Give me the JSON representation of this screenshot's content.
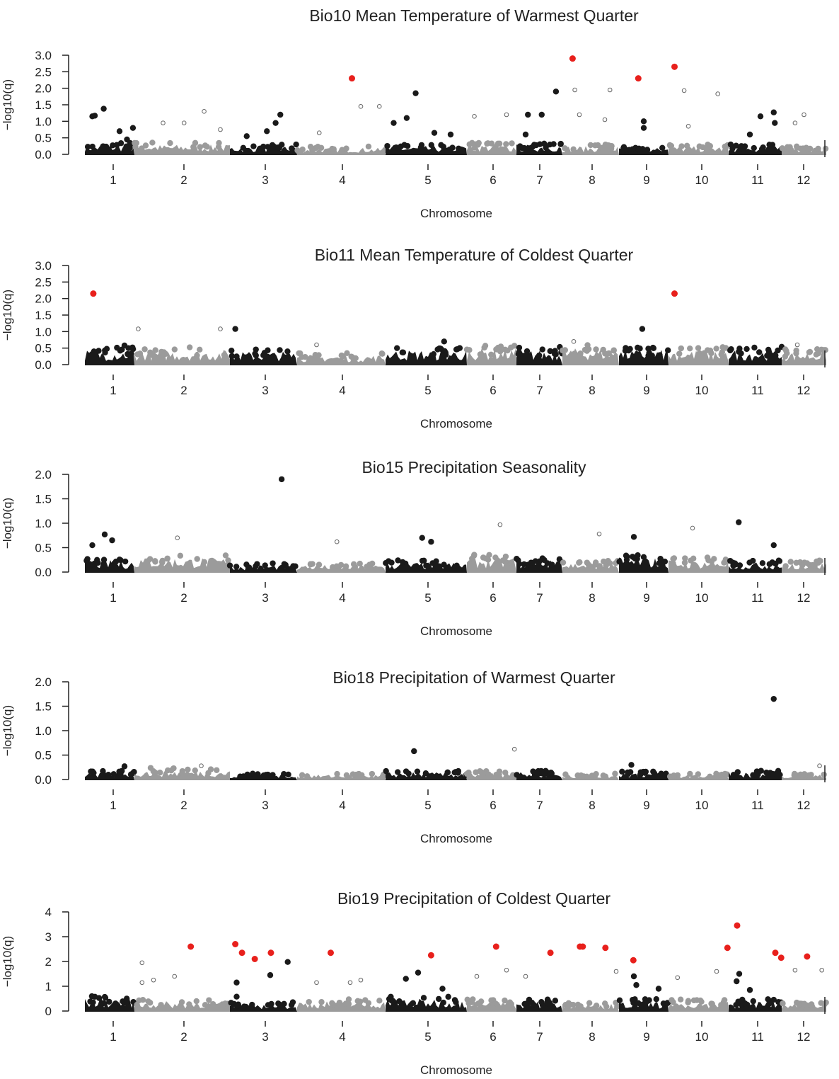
{
  "chart_data": [
    {
      "type": "scatter",
      "title": "Bio10  Mean Temperature of Warmest Quarter",
      "xlabel": "Chromosome",
      "ylabel": "−log10(q)",
      "ylim": [
        0,
        3
      ],
      "yticks": [
        "0.0",
        "0.5",
        "1.0",
        "1.5",
        "2.0",
        "2.5",
        "3.0"
      ],
      "categories": [
        "1",
        "2",
        "3",
        "4",
        "5",
        "6",
        "7",
        "8",
        "9",
        "10",
        "11",
        "12"
      ],
      "colors": {
        "odd": "#1a1a1a",
        "even": "#9b9b9b",
        "significant": "#e8201c"
      },
      "band_max": [
        0.3,
        0.3,
        0.25,
        0.2,
        0.25,
        0.3,
        0.3,
        0.25,
        0.2,
        0.25,
        0.25,
        0.2
      ],
      "points": [
        {
          "chr": 4,
          "pos": 0.62,
          "y": 2.3,
          "kind": "red"
        },
        {
          "chr": 8,
          "pos": 0.18,
          "y": 2.9,
          "kind": "red"
        },
        {
          "chr": 9,
          "pos": 0.39,
          "y": 2.3,
          "kind": "red"
        },
        {
          "chr": 10,
          "pos": 0.1,
          "y": 2.65,
          "kind": "red"
        },
        {
          "chr": 1,
          "pos": 0.15,
          "y": 1.15,
          "kind": "filled"
        },
        {
          "chr": 1,
          "pos": 0.2,
          "y": 1.17,
          "kind": "filled"
        },
        {
          "chr": 1,
          "pos": 0.38,
          "y": 1.38,
          "kind": "filled"
        },
        {
          "chr": 1,
          "pos": 0.7,
          "y": 0.7,
          "kind": "filled"
        },
        {
          "chr": 1,
          "pos": 0.85,
          "y": 0.45,
          "kind": "filled"
        },
        {
          "chr": 1,
          "pos": 0.97,
          "y": 0.8,
          "kind": "filled"
        },
        {
          "chr": 3,
          "pos": 0.25,
          "y": 0.55,
          "kind": "filled"
        },
        {
          "chr": 3,
          "pos": 0.55,
          "y": 0.7,
          "kind": "filled"
        },
        {
          "chr": 3,
          "pos": 0.68,
          "y": 0.95,
          "kind": "filled"
        },
        {
          "chr": 3,
          "pos": 0.75,
          "y": 1.2,
          "kind": "filled"
        },
        {
          "chr": 5,
          "pos": 0.1,
          "y": 0.95,
          "kind": "filled"
        },
        {
          "chr": 5,
          "pos": 0.26,
          "y": 1.1,
          "kind": "filled"
        },
        {
          "chr": 5,
          "pos": 0.37,
          "y": 1.85,
          "kind": "filled"
        },
        {
          "chr": 5,
          "pos": 0.6,
          "y": 0.65,
          "kind": "filled"
        },
        {
          "chr": 5,
          "pos": 0.8,
          "y": 0.6,
          "kind": "filled"
        },
        {
          "chr": 7,
          "pos": 0.25,
          "y": 1.2,
          "kind": "filled"
        },
        {
          "chr": 7,
          "pos": 0.55,
          "y": 1.2,
          "kind": "filled"
        },
        {
          "chr": 7,
          "pos": 0.86,
          "y": 1.9,
          "kind": "filled"
        },
        {
          "chr": 7,
          "pos": 0.2,
          "y": 0.6,
          "kind": "filled"
        },
        {
          "chr": 9,
          "pos": 0.5,
          "y": 1.0,
          "kind": "filled"
        },
        {
          "chr": 9,
          "pos": 0.5,
          "y": 0.8,
          "kind": "filled"
        },
        {
          "chr": 11,
          "pos": 0.4,
          "y": 0.6,
          "kind": "filled"
        },
        {
          "chr": 11,
          "pos": 0.6,
          "y": 1.15,
          "kind": "filled"
        },
        {
          "chr": 11,
          "pos": 0.85,
          "y": 1.27,
          "kind": "filled"
        },
        {
          "chr": 11,
          "pos": 0.87,
          "y": 0.95,
          "kind": "filled"
        },
        {
          "chr": 2,
          "pos": 0.73,
          "y": 1.3,
          "kind": "open"
        },
        {
          "chr": 2,
          "pos": 0.3,
          "y": 0.95,
          "kind": "open"
        },
        {
          "chr": 2,
          "pos": 0.52,
          "y": 0.95,
          "kind": "open"
        },
        {
          "chr": 2,
          "pos": 0.9,
          "y": 0.75,
          "kind": "open"
        },
        {
          "chr": 4,
          "pos": 0.72,
          "y": 1.45,
          "kind": "open"
        },
        {
          "chr": 4,
          "pos": 0.93,
          "y": 1.45,
          "kind": "open"
        },
        {
          "chr": 4,
          "pos": 0.25,
          "y": 0.65,
          "kind": "open"
        },
        {
          "chr": 6,
          "pos": 0.15,
          "y": 1.15,
          "kind": "open"
        },
        {
          "chr": 6,
          "pos": 0.8,
          "y": 1.2,
          "kind": "open"
        },
        {
          "chr": 8,
          "pos": 0.22,
          "y": 1.95,
          "kind": "open"
        },
        {
          "chr": 8,
          "pos": 0.84,
          "y": 1.95,
          "kind": "open"
        },
        {
          "chr": 8,
          "pos": 0.3,
          "y": 1.2,
          "kind": "open"
        },
        {
          "chr": 8,
          "pos": 0.75,
          "y": 1.05,
          "kind": "open"
        },
        {
          "chr": 10,
          "pos": 0.26,
          "y": 1.93,
          "kind": "open"
        },
        {
          "chr": 10,
          "pos": 0.82,
          "y": 1.83,
          "kind": "open"
        },
        {
          "chr": 10,
          "pos": 0.33,
          "y": 0.85,
          "kind": "open"
        },
        {
          "chr": 12,
          "pos": 0.5,
          "y": 1.2,
          "kind": "open"
        },
        {
          "chr": 12,
          "pos": 0.3,
          "y": 0.95,
          "kind": "open"
        }
      ]
    },
    {
      "type": "scatter",
      "title": "Bio11 Mean Temperature of Coldest Quarter",
      "xlabel": "Chromosome",
      "ylabel": "−log10(q)",
      "ylim": [
        0,
        3
      ],
      "yticks": [
        "0.0",
        "0.5",
        "1.0",
        "1.5",
        "2.0",
        "2.5",
        "3.0"
      ],
      "categories": [
        "1",
        "2",
        "3",
        "4",
        "5",
        "6",
        "7",
        "8",
        "9",
        "10",
        "11",
        "12"
      ],
      "colors": {
        "odd": "#1a1a1a",
        "even": "#9b9b9b",
        "significant": "#e8201c"
      },
      "band_max": [
        0.45,
        0.45,
        0.4,
        0.3,
        0.45,
        0.5,
        0.45,
        0.5,
        0.45,
        0.45,
        0.45,
        0.4
      ],
      "points": [
        {
          "chr": 1,
          "pos": 0.17,
          "y": 2.15,
          "kind": "red"
        },
        {
          "chr": 10,
          "pos": 0.1,
          "y": 2.15,
          "kind": "red"
        },
        {
          "chr": 3,
          "pos": 0.08,
          "y": 1.08,
          "kind": "filled"
        },
        {
          "chr": 9,
          "pos": 0.47,
          "y": 1.08,
          "kind": "filled"
        },
        {
          "chr": 1,
          "pos": 0.8,
          "y": 0.58,
          "kind": "filled"
        },
        {
          "chr": 5,
          "pos": 0.72,
          "y": 0.7,
          "kind": "filled"
        },
        {
          "chr": 2,
          "pos": 0.04,
          "y": 1.08,
          "kind": "open"
        },
        {
          "chr": 2,
          "pos": 0.9,
          "y": 1.08,
          "kind": "open"
        },
        {
          "chr": 4,
          "pos": 0.22,
          "y": 0.6,
          "kind": "open"
        },
        {
          "chr": 8,
          "pos": 0.2,
          "y": 0.7,
          "kind": "open"
        },
        {
          "chr": 12,
          "pos": 0.35,
          "y": 0.6,
          "kind": "open"
        }
      ]
    },
    {
      "type": "scatter",
      "title": "Bio15  Precipitation Seasonality",
      "xlabel": "Chromosome",
      "ylabel": "−log10(q)",
      "ylim": [
        0,
        2
      ],
      "yticks": [
        "0.0",
        "0.5",
        "1.0",
        "1.5",
        "2.0"
      ],
      "categories": [
        "1",
        "2",
        "3",
        "4",
        "5",
        "6",
        "7",
        "8",
        "9",
        "10",
        "11",
        "12"
      ],
      "colors": {
        "odd": "#1a1a1a",
        "even": "#9b9b9b",
        "significant": "#e8201c"
      },
      "band_max": [
        0.25,
        0.3,
        0.15,
        0.15,
        0.2,
        0.3,
        0.25,
        0.2,
        0.3,
        0.25,
        0.2,
        0.2
      ],
      "points": [
        {
          "chr": 3,
          "pos": 0.77,
          "y": 1.9,
          "kind": "filled"
        },
        {
          "chr": 11,
          "pos": 0.19,
          "y": 1.02,
          "kind": "filled"
        },
        {
          "chr": 1,
          "pos": 0.4,
          "y": 0.77,
          "kind": "filled"
        },
        {
          "chr": 1,
          "pos": 0.55,
          "y": 0.65,
          "kind": "filled"
        },
        {
          "chr": 1,
          "pos": 0.15,
          "y": 0.55,
          "kind": "filled"
        },
        {
          "chr": 5,
          "pos": 0.45,
          "y": 0.7,
          "kind": "filled"
        },
        {
          "chr": 5,
          "pos": 0.56,
          "y": 0.62,
          "kind": "filled"
        },
        {
          "chr": 9,
          "pos": 0.3,
          "y": 0.72,
          "kind": "filled"
        },
        {
          "chr": 11,
          "pos": 0.85,
          "y": 0.55,
          "kind": "filled"
        },
        {
          "chr": 6,
          "pos": 0.67,
          "y": 0.97,
          "kind": "open"
        },
        {
          "chr": 10,
          "pos": 0.4,
          "y": 0.9,
          "kind": "open"
        },
        {
          "chr": 2,
          "pos": 0.45,
          "y": 0.7,
          "kind": "open"
        },
        {
          "chr": 4,
          "pos": 0.45,
          "y": 0.62,
          "kind": "open"
        },
        {
          "chr": 8,
          "pos": 0.65,
          "y": 0.78,
          "kind": "open"
        }
      ]
    },
    {
      "type": "scatter",
      "title": "Bio18  Precipitation of Warmest Quarter",
      "xlabel": "Chromosome",
      "ylabel": "−log10(q)",
      "ylim": [
        0,
        2
      ],
      "yticks": [
        "0.0",
        "0.5",
        "1.0",
        "1.5",
        "2.0"
      ],
      "categories": [
        "1",
        "2",
        "3",
        "4",
        "5",
        "6",
        "7",
        "8",
        "9",
        "10",
        "11",
        "12"
      ],
      "colors": {
        "odd": "#1a1a1a",
        "even": "#9b9b9b",
        "significant": "#e8201c"
      },
      "band_max": [
        0.15,
        0.2,
        0.1,
        0.1,
        0.15,
        0.15,
        0.15,
        0.1,
        0.15,
        0.1,
        0.15,
        0.1
      ],
      "points": [
        {
          "chr": 11,
          "pos": 0.85,
          "y": 1.65,
          "kind": "filled"
        },
        {
          "chr": 5,
          "pos": 0.35,
          "y": 0.58,
          "kind": "filled"
        },
        {
          "chr": 1,
          "pos": 0.8,
          "y": 0.27,
          "kind": "filled"
        },
        {
          "chr": 9,
          "pos": 0.25,
          "y": 0.3,
          "kind": "filled"
        },
        {
          "chr": 6,
          "pos": 0.96,
          "y": 0.62,
          "kind": "open"
        },
        {
          "chr": 2,
          "pos": 0.7,
          "y": 0.28,
          "kind": "open"
        },
        {
          "chr": 12,
          "pos": 0.85,
          "y": 0.28,
          "kind": "open"
        }
      ]
    },
    {
      "type": "scatter",
      "title": "Bio19  Precipitation of Coldest Quarter",
      "xlabel": "Chromosome",
      "ylabel": "−log10(q)",
      "ylim": [
        0,
        4
      ],
      "yticks": [
        "0",
        "1",
        "2",
        "3",
        "4"
      ],
      "categories": [
        "1",
        "2",
        "3",
        "4",
        "5",
        "6",
        "7",
        "8",
        "9",
        "10",
        "11",
        "12"
      ],
      "colors": {
        "odd": "#1a1a1a",
        "even": "#9b9b9b",
        "significant": "#e8201c"
      },
      "band_max": [
        0.5,
        0.4,
        0.3,
        0.4,
        0.5,
        0.4,
        0.4,
        0.3,
        0.4,
        0.4,
        0.4,
        0.3
      ],
      "points": [
        {
          "chr": 2,
          "pos": 0.59,
          "y": 2.6,
          "kind": "red"
        },
        {
          "chr": 3,
          "pos": 0.08,
          "y": 2.7,
          "kind": "red"
        },
        {
          "chr": 3,
          "pos": 0.18,
          "y": 2.35,
          "kind": "red"
        },
        {
          "chr": 3,
          "pos": 0.37,
          "y": 2.1,
          "kind": "red"
        },
        {
          "chr": 3,
          "pos": 0.61,
          "y": 2.35,
          "kind": "red"
        },
        {
          "chr": 4,
          "pos": 0.38,
          "y": 2.35,
          "kind": "red"
        },
        {
          "chr": 5,
          "pos": 0.56,
          "y": 2.25,
          "kind": "red"
        },
        {
          "chr": 6,
          "pos": 0.59,
          "y": 2.6,
          "kind": "red"
        },
        {
          "chr": 7,
          "pos": 0.74,
          "y": 2.35,
          "kind": "red"
        },
        {
          "chr": 8,
          "pos": 0.31,
          "y": 2.6,
          "kind": "red"
        },
        {
          "chr": 8,
          "pos": 0.36,
          "y": 2.6,
          "kind": "red"
        },
        {
          "chr": 8,
          "pos": 0.76,
          "y": 2.55,
          "kind": "red"
        },
        {
          "chr": 9,
          "pos": 0.29,
          "y": 2.05,
          "kind": "red"
        },
        {
          "chr": 10,
          "pos": 0.98,
          "y": 2.55,
          "kind": "red"
        },
        {
          "chr": 11,
          "pos": 0.16,
          "y": 3.45,
          "kind": "red"
        },
        {
          "chr": 11,
          "pos": 0.88,
          "y": 2.35,
          "kind": "red"
        },
        {
          "chr": 11,
          "pos": 0.99,
          "y": 2.15,
          "kind": "red"
        },
        {
          "chr": 12,
          "pos": 0.57,
          "y": 2.2,
          "kind": "red"
        },
        {
          "chr": 3,
          "pos": 0.86,
          "y": 1.98,
          "kind": "filled"
        },
        {
          "chr": 3,
          "pos": 0.6,
          "y": 1.45,
          "kind": "filled"
        },
        {
          "chr": 3,
          "pos": 0.1,
          "y": 1.15,
          "kind": "filled"
        },
        {
          "chr": 3,
          "pos": 0.1,
          "y": 0.58,
          "kind": "filled"
        },
        {
          "chr": 5,
          "pos": 0.25,
          "y": 1.3,
          "kind": "filled"
        },
        {
          "chr": 5,
          "pos": 0.4,
          "y": 1.55,
          "kind": "filled"
        },
        {
          "chr": 5,
          "pos": 0.7,
          "y": 0.9,
          "kind": "filled"
        },
        {
          "chr": 9,
          "pos": 0.3,
          "y": 1.4,
          "kind": "filled"
        },
        {
          "chr": 9,
          "pos": 0.35,
          "y": 1.05,
          "kind": "filled"
        },
        {
          "chr": 9,
          "pos": 0.8,
          "y": 0.9,
          "kind": "filled"
        },
        {
          "chr": 11,
          "pos": 0.2,
          "y": 1.5,
          "kind": "filled"
        },
        {
          "chr": 11,
          "pos": 0.15,
          "y": 1.2,
          "kind": "filled"
        },
        {
          "chr": 11,
          "pos": 0.4,
          "y": 0.85,
          "kind": "filled"
        },
        {
          "chr": 2,
          "pos": 0.08,
          "y": 1.95,
          "kind": "open"
        },
        {
          "chr": 2,
          "pos": 0.08,
          "y": 1.15,
          "kind": "open"
        },
        {
          "chr": 2,
          "pos": 0.2,
          "y": 1.25,
          "kind": "open"
        },
        {
          "chr": 2,
          "pos": 0.42,
          "y": 1.4,
          "kind": "open"
        },
        {
          "chr": 4,
          "pos": 0.22,
          "y": 1.15,
          "kind": "open"
        },
        {
          "chr": 4,
          "pos": 0.6,
          "y": 1.15,
          "kind": "open"
        },
        {
          "chr": 4,
          "pos": 0.72,
          "y": 1.25,
          "kind": "open"
        },
        {
          "chr": 6,
          "pos": 0.2,
          "y": 1.4,
          "kind": "open"
        },
        {
          "chr": 6,
          "pos": 0.8,
          "y": 1.65,
          "kind": "open"
        },
        {
          "chr": 7,
          "pos": 0.2,
          "y": 1.4,
          "kind": "open"
        },
        {
          "chr": 8,
          "pos": 0.95,
          "y": 1.6,
          "kind": "open"
        },
        {
          "chr": 10,
          "pos": 0.15,
          "y": 1.35,
          "kind": "open"
        },
        {
          "chr": 10,
          "pos": 0.8,
          "y": 1.6,
          "kind": "open"
        },
        {
          "chr": 12,
          "pos": 0.3,
          "y": 1.65,
          "kind": "open"
        },
        {
          "chr": 12,
          "pos": 0.9,
          "y": 1.65,
          "kind": "open"
        }
      ]
    }
  ]
}
